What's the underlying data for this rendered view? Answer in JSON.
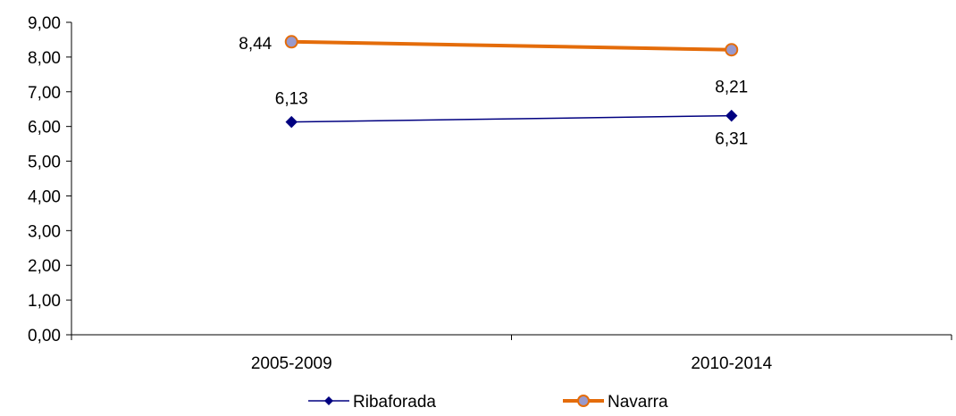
{
  "chart_data": {
    "type": "line",
    "categories": [
      "2005-2009",
      "2010-2014"
    ],
    "ylim": [
      0,
      9
    ],
    "yticks": [
      "0,00",
      "1,00",
      "2,00",
      "3,00",
      "4,00",
      "5,00",
      "6,00",
      "7,00",
      "8,00",
      "9,00"
    ],
    "grid": false,
    "legend_position": "bottom",
    "series": [
      {
        "name": "Ribaforada",
        "values": [
          6.13,
          6.31
        ],
        "labels": [
          "6,13",
          "6,31"
        ],
        "color": "#000080",
        "marker": "diamond"
      },
      {
        "name": "Navarra",
        "values": [
          8.44,
          8.21
        ],
        "labels": [
          "8,44",
          "8,21"
        ],
        "color": "#E46C0A",
        "marker_fill": "#9999CC",
        "marker": "circle"
      }
    ]
  }
}
